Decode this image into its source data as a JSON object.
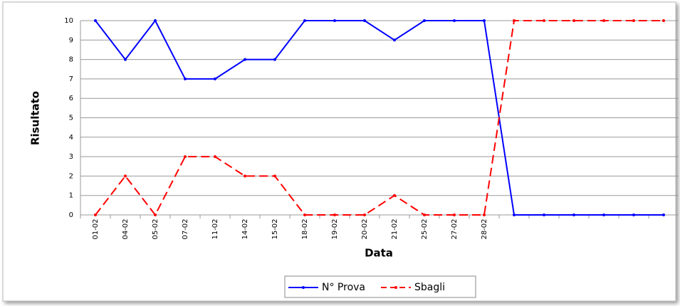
{
  "chart_data": {
    "type": "line",
    "x_label": "Data",
    "y_label": "Risultato",
    "categories": [
      "01-02",
      "04-02",
      "05-02",
      "07-02",
      "11-02",
      "14-02",
      "15-02",
      "18-02",
      "19-02",
      "20-02",
      "21-02",
      "25-02",
      "27-02",
      "28-02",
      null,
      null,
      null,
      null,
      null,
      null
    ],
    "series": [
      {
        "name": "N° Prova",
        "color": "#0000ff",
        "dash": false,
        "values": [
          10,
          8,
          10,
          7,
          7,
          8,
          8,
          10,
          10,
          10,
          9,
          10,
          10,
          10,
          0,
          0,
          0,
          0,
          0,
          0
        ]
      },
      {
        "name": "Sbagli",
        "color": "#ff0000",
        "dash": true,
        "values": [
          0,
          2,
          0,
          3,
          3,
          2,
          2,
          0,
          0,
          0,
          1,
          0,
          0,
          0,
          10,
          10,
          10,
          10,
          10,
          10
        ]
      }
    ],
    "ylim": [
      0,
      10
    ],
    "yticks": [
      0,
      1,
      2,
      3,
      4,
      5,
      6,
      7,
      8,
      9,
      10
    ],
    "grid": true
  }
}
